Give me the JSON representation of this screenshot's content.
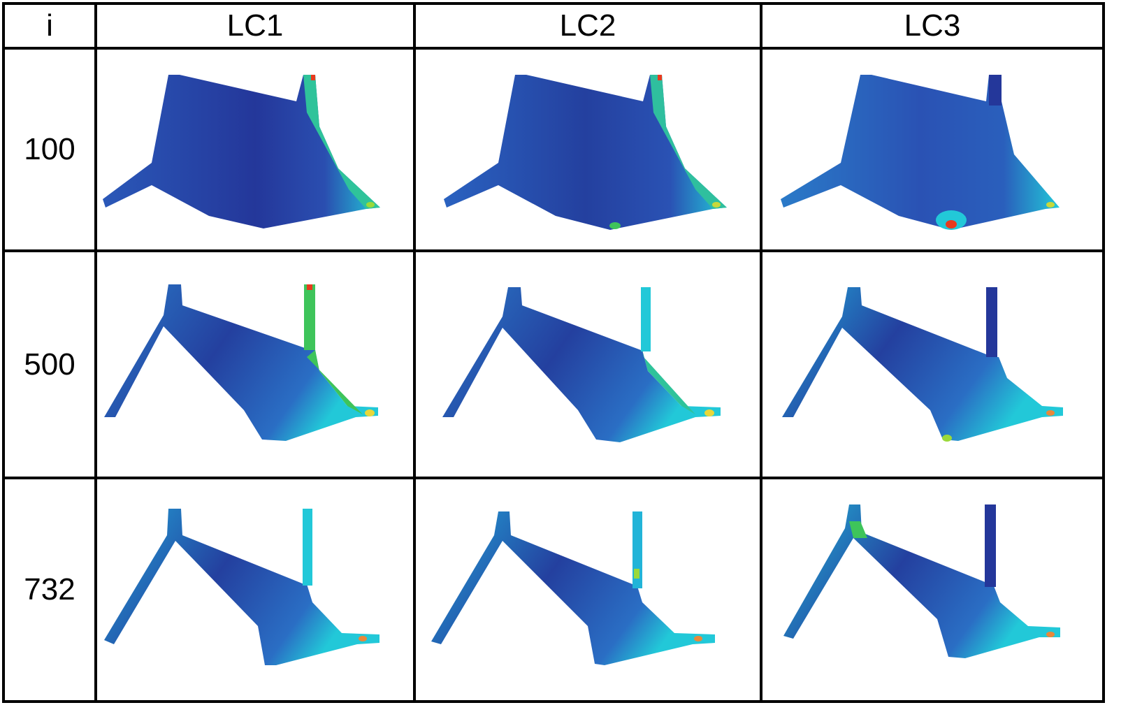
{
  "table": {
    "corner_label": "i",
    "columns": [
      "LC1",
      "LC2",
      "LC3"
    ],
    "rows": [
      {
        "label": "100"
      },
      {
        "label": "500"
      },
      {
        "label": "732"
      }
    ]
  },
  "colors": {
    "stress_low": "#24379a",
    "stress_mid_low": "#1f7fc8",
    "stress_mid": "#22c8d8",
    "stress_high": "#3ec45a",
    "stress_peak": "#e83a1e",
    "border": "#000000"
  }
}
